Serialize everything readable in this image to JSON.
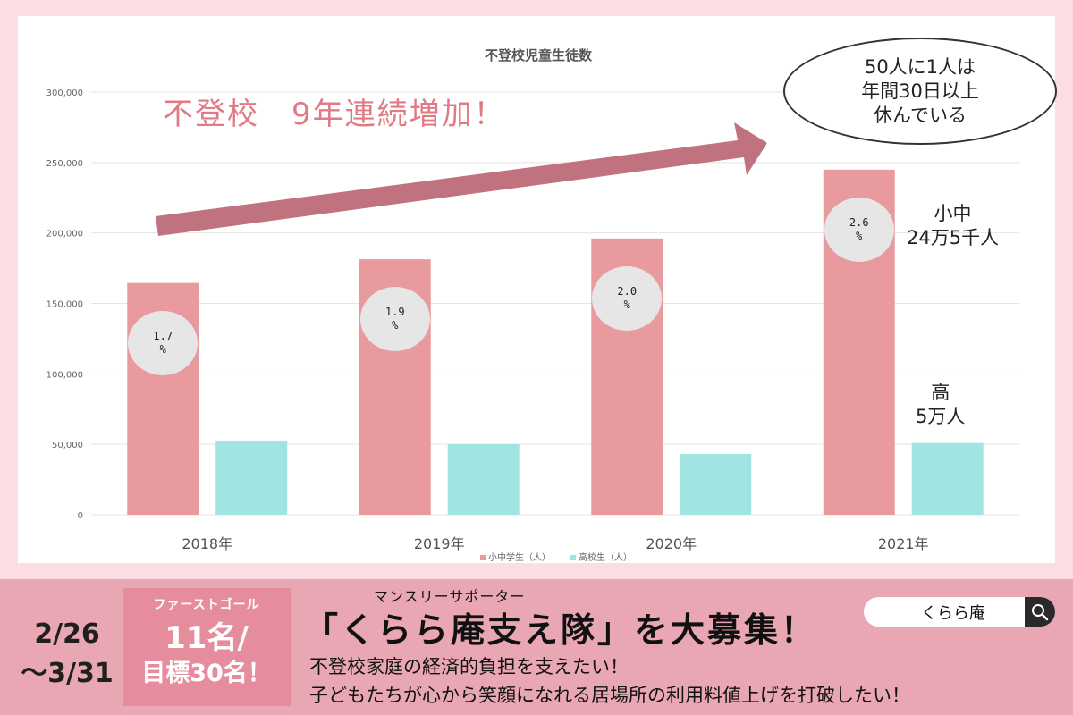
{
  "chart_data": {
    "type": "bar",
    "title": "不登校児童生徒数",
    "categories": [
      "2018年",
      "2019年",
      "2020年",
      "2021年"
    ],
    "ylim": [
      0,
      300000
    ],
    "yticks": [
      "0",
      "50,000",
      "100,000",
      "150,000",
      "200,000",
      "250,000",
      "300,000"
    ],
    "ytick_values": [
      0,
      50000,
      100000,
      150000,
      200000,
      250000,
      300000
    ],
    "grid": true,
    "legend_position": "bottom",
    "series": [
      {
        "name": "小中学生（人）",
        "color": "#e89a9f",
        "values": [
          164500,
          181300,
          196100,
          244900
        ]
      },
      {
        "name": "高校生（人）",
        "color": "#a0e5e1",
        "values": [
          52700,
          50100,
          43100,
          50900
        ]
      }
    ],
    "percent_labels": [
      {
        "value": "1.7",
        "unit": "%"
      },
      {
        "value": "1.9",
        "unit": "%"
      },
      {
        "value": "2.0",
        "unit": "%"
      },
      {
        "value": "2.6",
        "unit": "%"
      }
    ]
  },
  "annotations": {
    "headline": "不登校　9年連続増加！",
    "callout_lines": [
      "50人に1人は",
      "年間30日以上",
      "休んでいる"
    ],
    "elementary_lines": [
      "小中",
      "24万5千人"
    ],
    "high_lines": [
      "高",
      "5万人"
    ]
  },
  "banner": {
    "date_start": "2/26",
    "date_end": "～3/31",
    "goal_label": "ファーストゴール",
    "goal_count": "11名/",
    "goal_target": "目標30名！",
    "monthly_label": "マンスリーサポーター",
    "title": "「くらら庵支え隊」を大募集！",
    "line1": "不登校家庭の経済的負担を支えたい！",
    "line2": "子どもたちが心から笑顔になれる居場所の利用料値上げを打破したい！"
  },
  "search": {
    "text": "くらら庵",
    "icon": "search-icon"
  },
  "colors": {
    "arrow": "#c0737f",
    "background": "#fbdde3",
    "band": "#e9a7b3",
    "goal_box": "#e58d9c"
  }
}
